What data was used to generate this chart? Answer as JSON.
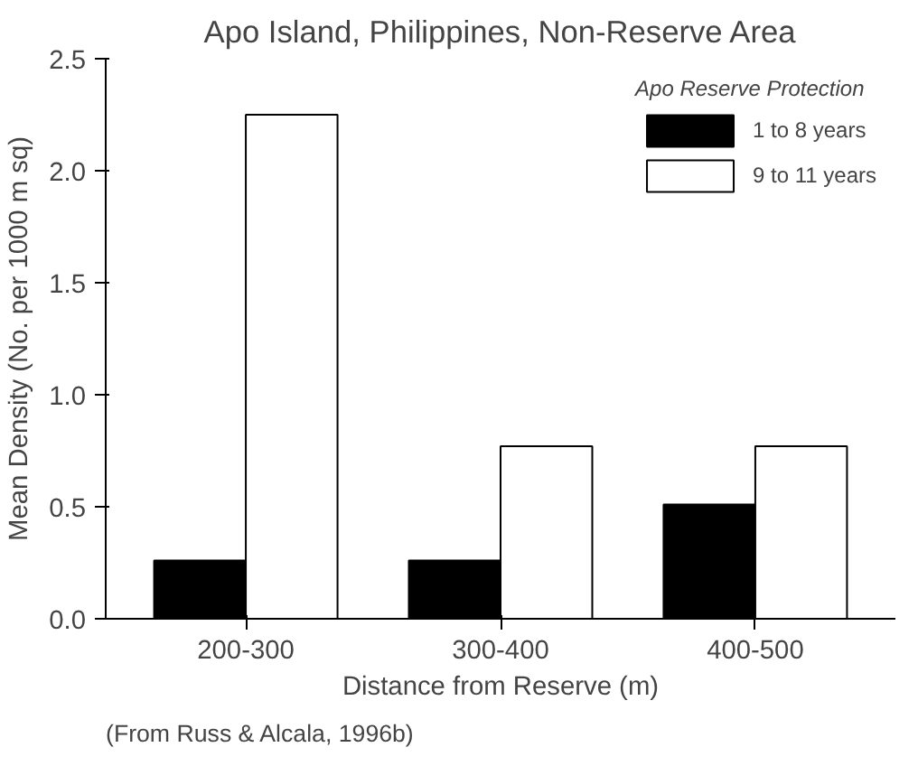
{
  "chart_data": {
    "type": "bar",
    "title": "Apo Island, Philippines, Non-Reserve Area",
    "xlabel": "Distance from Reserve (m)",
    "ylabel": "Mean Density (No. per 1000 m sq)",
    "legend_title": "Apo Reserve Protection",
    "categories": [
      "200-300",
      "300-400",
      "400-500"
    ],
    "series": [
      {
        "name": "1 to 8 years",
        "color": "#000000",
        "values": [
          0.26,
          0.26,
          0.51
        ]
      },
      {
        "name": "9 to 11 years",
        "color": "#ffffff",
        "values": [
          2.25,
          0.77,
          0.77
        ]
      }
    ],
    "ylim": [
      0,
      2.5
    ],
    "yticks": [
      {
        "value": 0,
        "label": "0.0"
      },
      0.5,
      {
        "value": 1,
        "label": "1.0"
      },
      1.5,
      {
        "value": 2,
        "label": "2.0"
      },
      2.5
    ],
    "grid": false,
    "legend": "top right",
    "annotations": [
      "(From Russ & Alcala, 1996b)"
    ]
  }
}
